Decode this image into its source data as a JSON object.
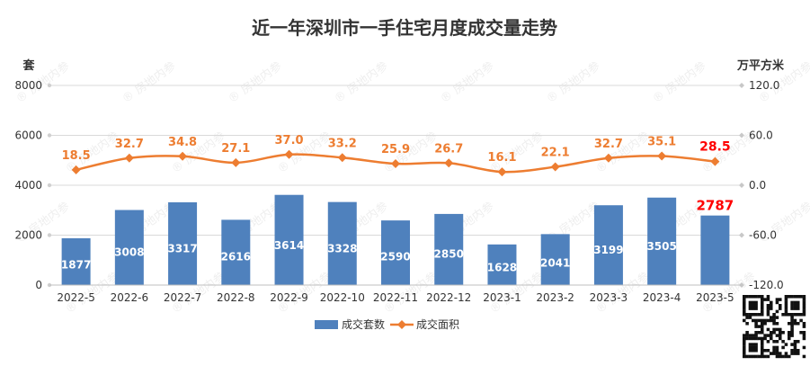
{
  "chart_data": {
    "type": "bar",
    "title": "近一年深圳市一手住宅月度成交量走势",
    "categories": [
      "2022-5",
      "2022-6",
      "2022-7",
      "2022-8",
      "2022-9",
      "2022-10",
      "2022-11",
      "2022-12",
      "2023-1",
      "2023-2",
      "2023-3",
      "2023-4",
      "2023-5"
    ],
    "y_left": {
      "unit_label": "套",
      "ylim": [
        0,
        8000
      ],
      "ticks": [
        "0",
        "2000",
        "4000",
        "6000",
        "8000"
      ]
    },
    "y_right": {
      "unit_label": "万平方米",
      "ylim": [
        -120,
        120
      ],
      "ticks": [
        "-120.0",
        "-60.0",
        "0.0",
        "60.0",
        "120.0"
      ]
    },
    "series": [
      {
        "name": "成交套数",
        "type": "bar",
        "axis": "left",
        "color": "#4f81bd",
        "values": [
          1877,
          3008,
          3317,
          2616,
          3614,
          3328,
          2590,
          2850,
          1628,
          2041,
          3199,
          3505,
          2787
        ],
        "labels": [
          "1877",
          "3008",
          "3317",
          "2616",
          "3614",
          "3328",
          "2590",
          "2850",
          "1628",
          "2041",
          "3199",
          "3505",
          "2787"
        ]
      },
      {
        "name": "成交面积",
        "type": "line",
        "axis": "right",
        "color": "#ed7d31",
        "values": [
          18.5,
          32.7,
          34.8,
          27.1,
          37.0,
          33.2,
          25.9,
          26.7,
          16.1,
          22.1,
          32.7,
          35.1,
          28.5
        ],
        "labels": [
          "18.5",
          "32.7",
          "34.8",
          "27.1",
          "37.0",
          "33.2",
          "25.9",
          "26.7",
          "16.1",
          "22.1",
          "32.7",
          "35.1",
          "28.5"
        ]
      }
    ],
    "highlight_last_color": "#ff0000",
    "grid": true,
    "legend_position": "bottom-center",
    "watermark": "房地内参"
  }
}
